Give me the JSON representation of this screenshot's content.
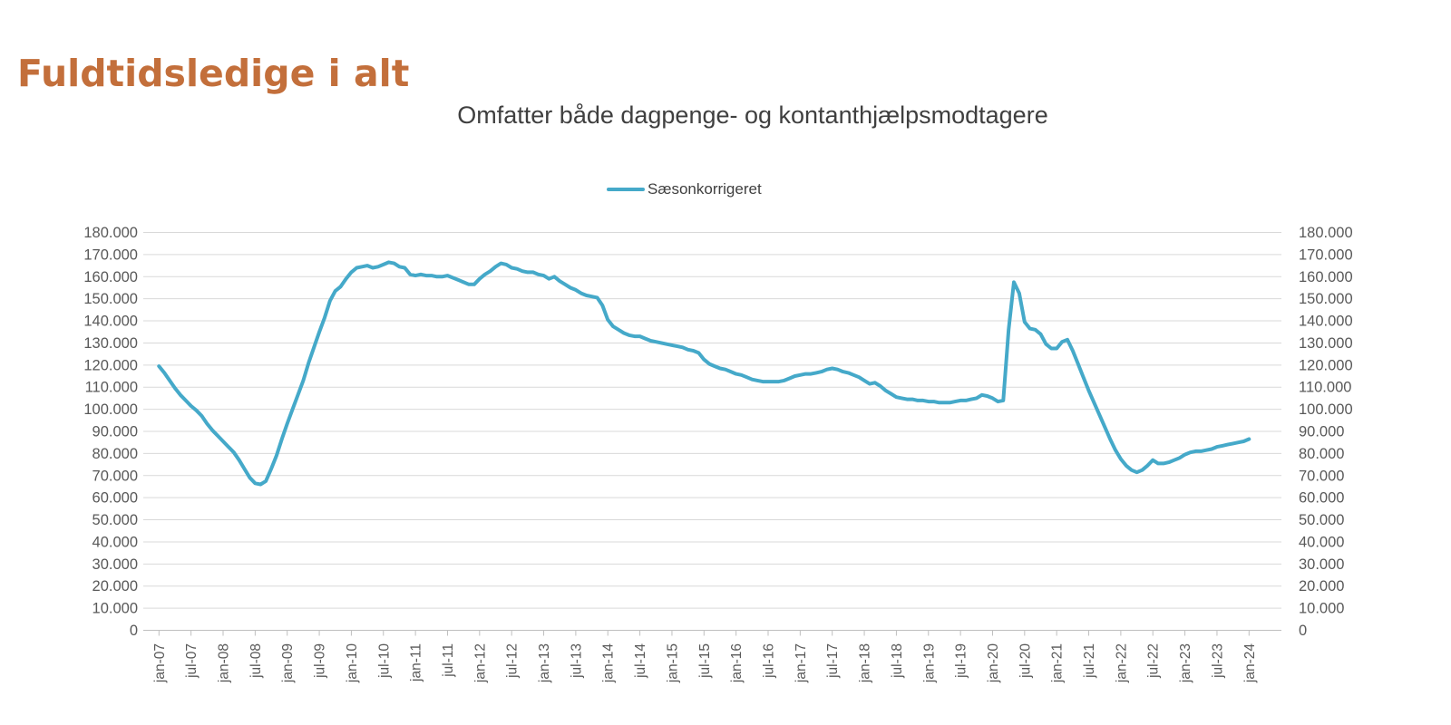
{
  "page": {
    "title": "Fuldtidsledige i alt",
    "title_color": "#c36f3b"
  },
  "chart_data": {
    "type": "line",
    "title": "Omfatter både dagpenge- og kontanthjælpsmodtagere",
    "legend": {
      "position": "top",
      "entries": [
        {
          "label": "Sæsonkorrigeret",
          "color": "#45a9c9"
        }
      ]
    },
    "x_axis": {
      "tick_labels": [
        "jan-07",
        "jul-07",
        "jan-08",
        "jul-08",
        "jan-09",
        "jul-09",
        "jan-10",
        "jul-10",
        "jan-11",
        "jul-11",
        "jan-12",
        "jul-12",
        "jan-13",
        "jul-13",
        "jan-14",
        "jul-14",
        "jan-15",
        "jul-15",
        "jan-16",
        "jul-16",
        "jan-17",
        "jul-17",
        "jan-18",
        "jul-18",
        "jan-19",
        "jul-19",
        "jan-20",
        "jul-20",
        "jan-21",
        "jul-21",
        "jan-22",
        "jul-22",
        "jan-23",
        "jul-23",
        "jan-24"
      ],
      "months_per_point": 1,
      "points_per_tick": 6,
      "first_point": "jan-07",
      "last_point": "jan-24"
    },
    "y_axis": {
      "min": 0,
      "max": 180000,
      "step": 10000,
      "sides": "both",
      "tick_labels": [
        "0",
        "10.000",
        "20.000",
        "30.000",
        "40.000",
        "50.000",
        "60.000",
        "70.000",
        "80.000",
        "90.000",
        "100.000",
        "110.000",
        "120.000",
        "130.000",
        "140.000",
        "150.000",
        "160.000",
        "170.000",
        "180.000"
      ]
    },
    "grid": true,
    "series": [
      {
        "name": "Sæsonkorrigeret",
        "color": "#45a9c9",
        "values": [
          119500,
          116500,
          113000,
          109500,
          106500,
          104000,
          101500,
          99500,
          97000,
          93500,
          90500,
          88000,
          85500,
          83000,
          80500,
          77000,
          73000,
          69000,
          66500,
          66000,
          67500,
          73000,
          79000,
          86500,
          93500,
          100000,
          106500,
          113000,
          121000,
          128000,
          135000,
          141500,
          149000,
          153500,
          155500,
          159000,
          162000,
          164000,
          164500,
          165000,
          164000,
          164500,
          165500,
          166500,
          166000,
          164500,
          164000,
          161000,
          160500,
          161000,
          160500,
          160500,
          160000,
          160000,
          160500,
          159500,
          158500,
          157500,
          156500,
          156500,
          159000,
          161000,
          162500,
          164500,
          166000,
          165500,
          164000,
          163500,
          162500,
          162000,
          162000,
          161000,
          160500,
          159000,
          160000,
          158000,
          156500,
          155000,
          154000,
          152500,
          151500,
          151000,
          150500,
          147000,
          140500,
          137500,
          136000,
          134500,
          133500,
          133000,
          133000,
          132000,
          131000,
          130500,
          130000,
          129500,
          129000,
          128500,
          128000,
          127000,
          126500,
          125500,
          122500,
          120500,
          119500,
          118500,
          118000,
          117000,
          116000,
          115500,
          114500,
          113500,
          113000,
          112500,
          112500,
          112500,
          112500,
          113000,
          114000,
          115000,
          115500,
          116000,
          116000,
          116500,
          117000,
          118000,
          118500,
          118000,
          117000,
          116500,
          115500,
          114500,
          113000,
          111500,
          112000,
          110500,
          108500,
          107000,
          105500,
          105000,
          104500,
          104500,
          104000,
          104000,
          103500,
          103500,
          103000,
          103000,
          103000,
          103500,
          104000,
          104000,
          104500,
          105000,
          106500,
          106000,
          105000,
          103500,
          104000,
          136000,
          157500,
          152500,
          139500,
          136500,
          136000,
          134000,
          129500,
          127500,
          127500,
          130500,
          131500,
          126500,
          120500,
          114500,
          108500,
          103000,
          97500,
          92000,
          86500,
          81500,
          77500,
          74500,
          72500,
          71500,
          72500,
          74500,
          77000,
          75500,
          75500,
          76000,
          77000,
          78000,
          79500,
          80500,
          81000,
          81000,
          81500,
          82000,
          83000,
          83500,
          84000,
          84500,
          85000,
          85500,
          86500
        ]
      }
    ],
    "style": {
      "gridline_color": "#d9d9d9",
      "axis_color": "#bfbfbf",
      "label_color": "#595959"
    }
  }
}
